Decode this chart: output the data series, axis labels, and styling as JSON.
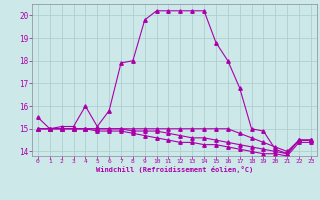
{
  "title": "",
  "xlabel": "Windchill (Refroidissement éolien,°C)",
  "bg_color": "#cce8e8",
  "line_color": "#aa00aa",
  "grid_color": "#aacccc",
  "xlim": [
    -0.5,
    23.5
  ],
  "ylim": [
    13.8,
    20.5
  ],
  "xticks": [
    0,
    1,
    2,
    3,
    4,
    5,
    6,
    7,
    8,
    9,
    10,
    11,
    12,
    13,
    14,
    15,
    16,
    17,
    18,
    19,
    20,
    21,
    22,
    23
  ],
  "yticks": [
    14,
    15,
    16,
    17,
    18,
    19,
    20
  ],
  "series": [
    {
      "x": [
        0,
        1,
        2,
        3,
        4,
        5,
        6,
        7,
        8,
        9,
        10,
        11,
        12,
        13,
        14,
        15,
        16,
        17,
        18,
        19,
        20,
        21,
        22,
        23
      ],
      "y": [
        15.5,
        15.0,
        15.1,
        15.1,
        16.0,
        15.1,
        15.8,
        17.9,
        18.0,
        19.8,
        20.2,
        20.2,
        20.2,
        20.2,
        20.2,
        18.8,
        18.0,
        16.8,
        15.0,
        14.9,
        14.1,
        13.9,
        14.5,
        14.5
      ],
      "linewidth": 0.8
    },
    {
      "x": [
        0,
        1,
        2,
        3,
        4,
        5,
        6,
        7,
        8,
        9,
        10,
        11,
        12,
        13,
        14,
        15,
        16,
        17,
        18,
        19,
        20,
        21,
        22,
        23
      ],
      "y": [
        15.0,
        15.0,
        15.0,
        15.0,
        15.0,
        15.0,
        15.0,
        15.0,
        15.0,
        15.0,
        15.0,
        15.0,
        15.0,
        15.0,
        15.0,
        15.0,
        15.0,
        14.8,
        14.6,
        14.4,
        14.2,
        14.0,
        14.5,
        14.5
      ],
      "linewidth": 0.8
    },
    {
      "x": [
        0,
        1,
        2,
        3,
        4,
        5,
        6,
        7,
        8,
        9,
        10,
        11,
        12,
        13,
        14,
        15,
        16,
        17,
        18,
        19,
        20,
        21,
        22,
        23
      ],
      "y": [
        15.0,
        15.0,
        15.0,
        15.0,
        15.0,
        15.0,
        15.0,
        15.0,
        14.9,
        14.9,
        14.9,
        14.8,
        14.7,
        14.6,
        14.6,
        14.5,
        14.4,
        14.3,
        14.2,
        14.1,
        14.0,
        13.9,
        14.5,
        14.5
      ],
      "linewidth": 0.8
    },
    {
      "x": [
        0,
        1,
        2,
        3,
        4,
        5,
        6,
        7,
        8,
        9,
        10,
        11,
        12,
        13,
        14,
        15,
        16,
        17,
        18,
        19,
        20,
        21,
        22,
        23
      ],
      "y": [
        15.0,
        15.0,
        15.0,
        15.0,
        15.0,
        14.9,
        14.9,
        14.9,
        14.8,
        14.7,
        14.6,
        14.5,
        14.4,
        14.4,
        14.3,
        14.3,
        14.2,
        14.1,
        14.0,
        13.9,
        13.9,
        13.8,
        14.4,
        14.4
      ],
      "linewidth": 0.8
    }
  ],
  "marker": "^",
  "markersize": 2.5
}
